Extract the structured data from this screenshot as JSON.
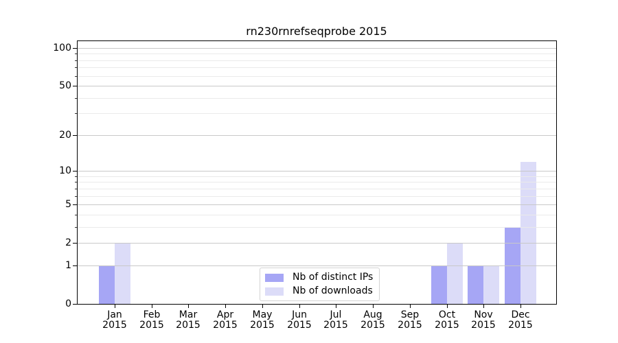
{
  "chart_data": {
    "type": "bar",
    "title": "rn230rnrefseqprobe 2015",
    "categories": [
      "Jan",
      "Feb",
      "Mar",
      "Apr",
      "May",
      "Jun",
      "Jul",
      "Aug",
      "Sep",
      "Oct",
      "Nov",
      "Dec"
    ],
    "year_label": "2015",
    "series": [
      {
        "name": "Nb of distinct IPs",
        "color": "#a6a6f5",
        "values": [
          1,
          0,
          0,
          0,
          0,
          0,
          0,
          0,
          0,
          1,
          1,
          3
        ]
      },
      {
        "name": "Nb of downloads",
        "color": "#dcdcf8",
        "values": [
          2,
          0,
          0,
          0,
          0,
          0,
          0,
          0,
          0,
          2,
          1,
          12
        ]
      }
    ],
    "yscale": "log1p",
    "y_major_ticks": [
      0,
      1,
      2,
      5,
      10,
      20,
      50,
      100
    ],
    "y_minor_ticks": [
      3,
      4,
      6,
      7,
      8,
      9,
      30,
      40,
      60,
      70,
      80,
      90
    ],
    "ylim": [
      0,
      113
    ],
    "xlabel": "",
    "ylabel": "",
    "grid": "both",
    "grid_above_bars": true,
    "legend_position": "lower center"
  },
  "colors": {
    "background": "#ffffff",
    "spine": "#000000",
    "text": "#000000",
    "major_grid": "#c8c8c8",
    "minor_grid": "#eaeaea",
    "legend_border": "#d3d3d3"
  }
}
